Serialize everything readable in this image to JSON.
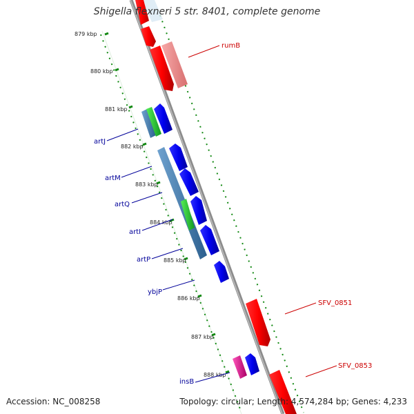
{
  "title": "Shigella flexneri 5 str. 8401, complete genome",
  "footer": {
    "accession": "Accession: NC_008258",
    "summary": "Topology: circular; Length: 4,574,284 bp; Genes: 4,233"
  },
  "ruler": {
    "ticks": [
      {
        "label": "879 kbp"
      },
      {
        "label": "880 kbp"
      },
      {
        "label": "881 kbp"
      },
      {
        "label": "882 kbp"
      },
      {
        "label": "883 kbp"
      },
      {
        "label": "884 kbp"
      },
      {
        "label": "885 kbp"
      },
      {
        "label": "886 kbp"
      },
      {
        "label": "887 kbp"
      },
      {
        "label": "888 kbp"
      }
    ]
  },
  "gene_labels": [
    {
      "id": "rumB",
      "label": "rumB",
      "color": "#cc0000"
    },
    {
      "id": "artJ",
      "label": "artJ",
      "color": "#000099"
    },
    {
      "id": "artM",
      "label": "artM",
      "color": "#000099"
    },
    {
      "id": "artQ",
      "label": "artQ",
      "color": "#000099"
    },
    {
      "id": "artI",
      "label": "artI",
      "color": "#000099"
    },
    {
      "id": "artP",
      "label": "artP",
      "color": "#000099"
    },
    {
      "id": "ybjP",
      "label": "ybjP",
      "color": "#000099"
    },
    {
      "id": "SFV_0851",
      "label": "SFV_0851",
      "color": "#cc0000"
    },
    {
      "id": "SFV_0853",
      "label": "SFV_0853",
      "color": "#cc0000"
    },
    {
      "id": "insB",
      "label": "insB",
      "color": "#000099"
    }
  ],
  "colors": {
    "backbone": "#8c8c8c",
    "ruler_dots": "#118811",
    "forward_gene": "#ee0000",
    "forward_gene_light": "#f09090",
    "reverse_gene": "#0000dd",
    "pseudo_gene": "#4a7fb0",
    "green_gene": "#22cc33",
    "magenta_gene": "#ee1199"
  }
}
